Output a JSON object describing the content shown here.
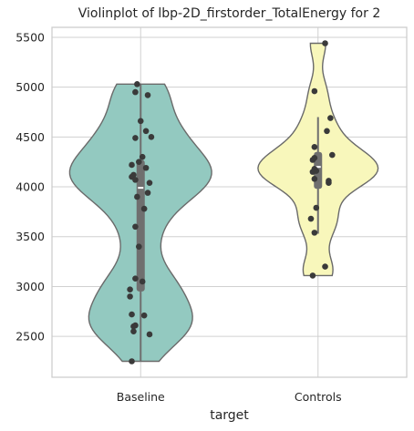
{
  "chart_data": {
    "type": "violin",
    "title": "Violinplot of lbp-2D_firstorder_TotalEnergy for 2",
    "xlabel": "target",
    "ylabel": "",
    "categories": [
      "Baseline",
      "Controls"
    ],
    "ylim": [
      2090,
      5600
    ],
    "yticks": [
      2500,
      3000,
      3500,
      4000,
      4500,
      5000,
      5500
    ],
    "grid": "horizontal",
    "colors": {
      "Baseline": "#93c9c0",
      "Controls": "#f8f7bb",
      "outline": "#6a6a6a",
      "point": "#3a3a3a",
      "box": "#6f6f6f",
      "grid": "#d0d0d0"
    },
    "series": [
      {
        "category": "Baseline",
        "points": [
          {
            "y": 5030,
            "jx": -0.02
          },
          {
            "y": 4950,
            "jx": -0.03
          },
          {
            "y": 4920,
            "jx": 0.04
          },
          {
            "y": 4660,
            "jx": 0.0
          },
          {
            "y": 4560,
            "jx": 0.03
          },
          {
            "y": 4500,
            "jx": 0.06
          },
          {
            "y": 4490,
            "jx": -0.03
          },
          {
            "y": 4300,
            "jx": 0.01
          },
          {
            "y": 4250,
            "jx": -0.01
          },
          {
            "y": 4220,
            "jx": -0.05
          },
          {
            "y": 4190,
            "jx": 0.03
          },
          {
            "y": 4120,
            "jx": -0.04
          },
          {
            "y": 4100,
            "jx": -0.05
          },
          {
            "y": 4070,
            "jx": -0.03
          },
          {
            "y": 4040,
            "jx": 0.05
          },
          {
            "y": 3940,
            "jx": 0.04
          },
          {
            "y": 3900,
            "jx": -0.02
          },
          {
            "y": 3780,
            "jx": 0.02
          },
          {
            "y": 3600,
            "jx": -0.03
          },
          {
            "y": 3400,
            "jx": -0.01
          },
          {
            "y": 3080,
            "jx": -0.03
          },
          {
            "y": 3050,
            "jx": 0.01
          },
          {
            "y": 2970,
            "jx": -0.06
          },
          {
            "y": 2900,
            "jx": -0.06
          },
          {
            "y": 2720,
            "jx": -0.05
          },
          {
            "y": 2710,
            "jx": 0.02
          },
          {
            "y": 2610,
            "jx": -0.03
          },
          {
            "y": 2600,
            "jx": -0.04
          },
          {
            "y": 2550,
            "jx": -0.04
          },
          {
            "y": 2520,
            "jx": 0.05
          },
          {
            "y": 2250,
            "jx": -0.05
          }
        ],
        "box": {
          "q1": 2950,
          "median": 3990,
          "q3": 4270,
          "whisker_low": 2250,
          "whisker_high": 5030
        },
        "violin_extent": [
          2250,
          5030
        ]
      },
      {
        "category": "Controls",
        "points": [
          {
            "y": 5440,
            "jx": 0.04
          },
          {
            "y": 4960,
            "jx": -0.02
          },
          {
            "y": 4690,
            "jx": 0.07
          },
          {
            "y": 4560,
            "jx": 0.05
          },
          {
            "y": 4400,
            "jx": -0.02
          },
          {
            "y": 4320,
            "jx": 0.08
          },
          {
            "y": 4290,
            "jx": -0.02
          },
          {
            "y": 4270,
            "jx": -0.03
          },
          {
            "y": 4180,
            "jx": -0.02
          },
          {
            "y": 4160,
            "jx": -0.01
          },
          {
            "y": 4150,
            "jx": -0.03
          },
          {
            "y": 4080,
            "jx": -0.02
          },
          {
            "y": 4060,
            "jx": 0.06
          },
          {
            "y": 4040,
            "jx": 0.06
          },
          {
            "y": 3790,
            "jx": -0.01
          },
          {
            "y": 3680,
            "jx": -0.04
          },
          {
            "y": 3540,
            "jx": -0.02
          },
          {
            "y": 3200,
            "jx": 0.04
          },
          {
            "y": 3110,
            "jx": -0.03
          }
        ],
        "box": {
          "q1": 3980,
          "median": 4200,
          "q3": 4350,
          "whisker_low": 3530,
          "whisker_high": 4700
        },
        "violin_extent": [
          3110,
          5440
        ]
      }
    ]
  }
}
